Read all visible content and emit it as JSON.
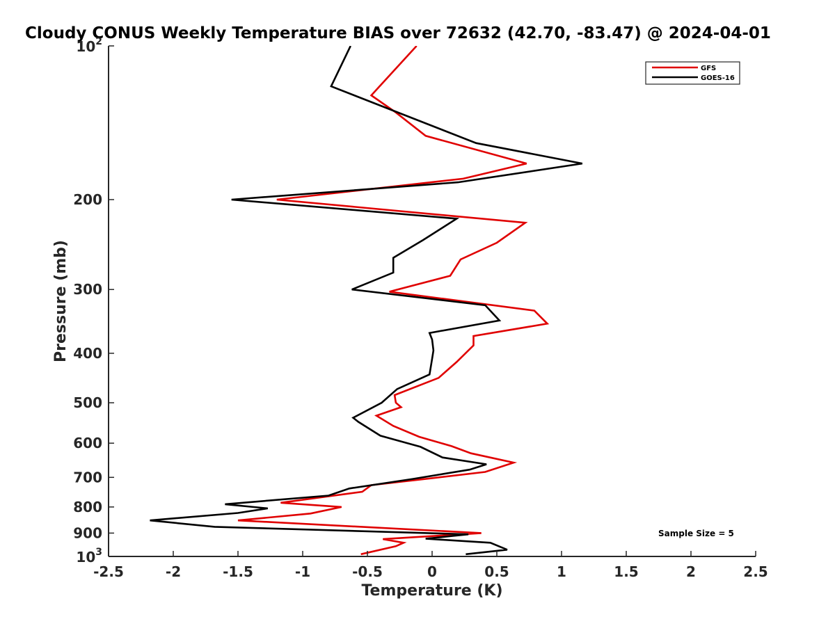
{
  "chart_data": {
    "type": "line",
    "title": "Cloudy CONUS Weekly Temperature BIAS over 72632 (42.70, -83.47) @ 2024-04-01",
    "xlabel": "Temperature (K)",
    "ylabel": "Pressure (mb)",
    "xlim": [
      -2.5,
      2.5
    ],
    "ylim": [
      100,
      1000
    ],
    "y_scale": "log",
    "y_reversed": true,
    "x_ticks": [
      "-2.5",
      "-2",
      "-1.5",
      "-1",
      "-0.5",
      "0",
      "0.5",
      "1",
      "1.5",
      "2",
      "2.5"
    ],
    "x_tick_values": [
      -2.5,
      -2,
      -1.5,
      -1,
      -0.5,
      0,
      0.5,
      1,
      1.5,
      2,
      2.5
    ],
    "y_ticks": [
      {
        "value": 100,
        "base": "10",
        "exp": "2"
      },
      {
        "value": 200,
        "label": "200"
      },
      {
        "value": 300,
        "label": "300"
      },
      {
        "value": 400,
        "label": "400"
      },
      {
        "value": 500,
        "label": "500"
      },
      {
        "value": 600,
        "label": "600"
      },
      {
        "value": 700,
        "label": "700"
      },
      {
        "value": 800,
        "label": "800"
      },
      {
        "value": 900,
        "label": "900"
      },
      {
        "value": 1000,
        "base": "10",
        "exp": "3"
      }
    ],
    "grid": false,
    "legend_position": "top-right",
    "annotation": "Sample Size = 5",
    "series": [
      {
        "name": "GFS",
        "color": "#e00000",
        "points": [
          [
            -0.12,
            100
          ],
          [
            -0.47,
            125
          ],
          [
            -0.28,
            135
          ],
          [
            -0.05,
            150
          ],
          [
            0.73,
            170
          ],
          [
            0.24,
            182
          ],
          [
            -1.2,
            200
          ],
          [
            0.72,
            222
          ],
          [
            0.5,
            243
          ],
          [
            0.22,
            262
          ],
          [
            0.14,
            282
          ],
          [
            -0.33,
            303
          ],
          [
            0.79,
            330
          ],
          [
            0.89,
            350
          ],
          [
            0.32,
            370
          ],
          [
            0.32,
            386
          ],
          [
            0.19,
            416
          ],
          [
            0.05,
            447
          ],
          [
            -0.29,
            483
          ],
          [
            -0.28,
            500
          ],
          [
            -0.24,
            510
          ],
          [
            -0.43,
            530
          ],
          [
            -0.3,
            555
          ],
          [
            -0.1,
            583
          ],
          [
            0.15,
            608
          ],
          [
            0.3,
            628
          ],
          [
            0.63,
            655
          ],
          [
            0.41,
            683
          ],
          [
            -0.01,
            703
          ],
          [
            -0.47,
            725
          ],
          [
            -0.54,
            747
          ],
          [
            -1.17,
            785
          ],
          [
            -0.7,
            800
          ],
          [
            -0.94,
            824
          ],
          [
            -1.5,
            850
          ],
          [
            0.38,
            900
          ],
          [
            -0.38,
            925
          ],
          [
            -0.22,
            940
          ],
          [
            -0.28,
            955
          ],
          [
            -0.55,
            990
          ]
        ]
      },
      {
        "name": "GOES-16",
        "color": "#000000",
        "points": [
          [
            -0.63,
            100
          ],
          [
            -0.78,
            120
          ],
          [
            0.34,
            155
          ],
          [
            1.16,
            170
          ],
          [
            0.2,
            185
          ],
          [
            -1.55,
            200
          ],
          [
            0.19,
            218
          ],
          [
            -0.07,
            240
          ],
          [
            -0.3,
            260
          ],
          [
            -0.3,
            278
          ],
          [
            -0.62,
            300
          ],
          [
            0.41,
            322
          ],
          [
            0.52,
            345
          ],
          [
            -0.02,
            365
          ],
          [
            0.0,
            376
          ],
          [
            0.01,
            395
          ],
          [
            0.0,
            410
          ],
          [
            -0.02,
            440
          ],
          [
            -0.27,
            470
          ],
          [
            -0.39,
            500
          ],
          [
            -0.61,
            535
          ],
          [
            -0.57,
            545
          ],
          [
            -0.4,
            580
          ],
          [
            -0.09,
            610
          ],
          [
            0.08,
            640
          ],
          [
            0.42,
            660
          ],
          [
            0.29,
            676
          ],
          [
            -0.15,
            705
          ],
          [
            -0.64,
            736
          ],
          [
            -0.8,
            760
          ],
          [
            -1.6,
            790
          ],
          [
            -1.27,
            805
          ],
          [
            -1.5,
            822
          ],
          [
            -2.18,
            850
          ],
          [
            -1.68,
            875
          ],
          [
            0.28,
            905
          ],
          [
            -0.05,
            923
          ],
          [
            0.45,
            940
          ],
          [
            0.58,
            970
          ],
          [
            0.26,
            990
          ]
        ]
      }
    ]
  }
}
